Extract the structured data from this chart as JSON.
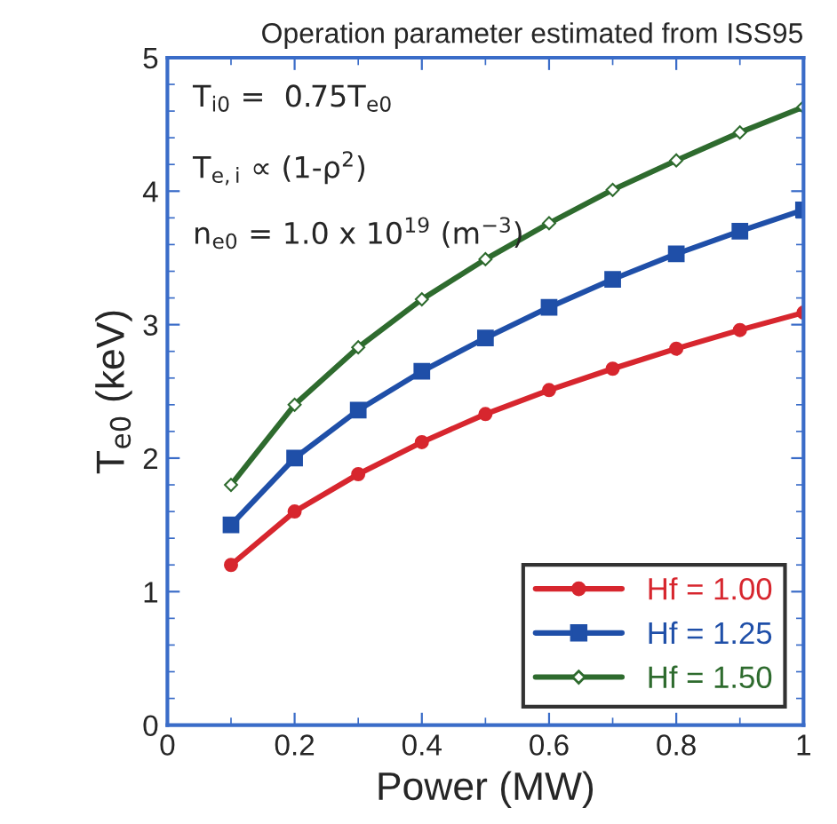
{
  "chart_data": {
    "type": "line",
    "title": "Operation parameter estimated from ISS95",
    "xlabel": "Power (MW)",
    "ylabel": "T$_{e0}$ (keV)",
    "x": [
      0.1,
      0.2,
      0.3,
      0.4,
      0.5,
      0.6,
      0.7,
      0.8,
      0.9,
      1.0
    ],
    "series": [
      {
        "name": "Hf = 1.00",
        "color": "#d7262e",
        "marker": "circle",
        "values": [
          1.2,
          1.6,
          1.88,
          2.12,
          2.33,
          2.51,
          2.67,
          2.82,
          2.96,
          3.09
        ]
      },
      {
        "name": "Hf = 1.25",
        "color": "#1f4fa8",
        "marker": "square",
        "values": [
          1.5,
          2.0,
          2.36,
          2.65,
          2.9,
          3.13,
          3.34,
          3.53,
          3.7,
          3.86
        ]
      },
      {
        "name": "Hf = 1.50",
        "color": "#2e6b2e",
        "marker": "diamond",
        "values": [
          1.8,
          2.4,
          2.83,
          3.19,
          3.49,
          3.76,
          4.01,
          4.23,
          4.44,
          4.63
        ]
      }
    ],
    "xlim": [
      0,
      1
    ],
    "ylim": [
      0,
      5
    ],
    "xticks": [
      0,
      0.2,
      0.4,
      0.6,
      0.8,
      1
    ],
    "yticks": [
      0,
      1,
      2,
      3,
      4,
      5
    ],
    "annotations": [
      "T$_{i0}$ =  0.75T$_{e0}$",
      "T$_{e,i}$ ∝ (1-ρ$^{2}$)",
      "n$_{e0}$ = 1.0 x 10$^{19}$ (m$^{−3}$)"
    ],
    "legend": "bottom right",
    "grid": false,
    "line_style": "solid"
  }
}
